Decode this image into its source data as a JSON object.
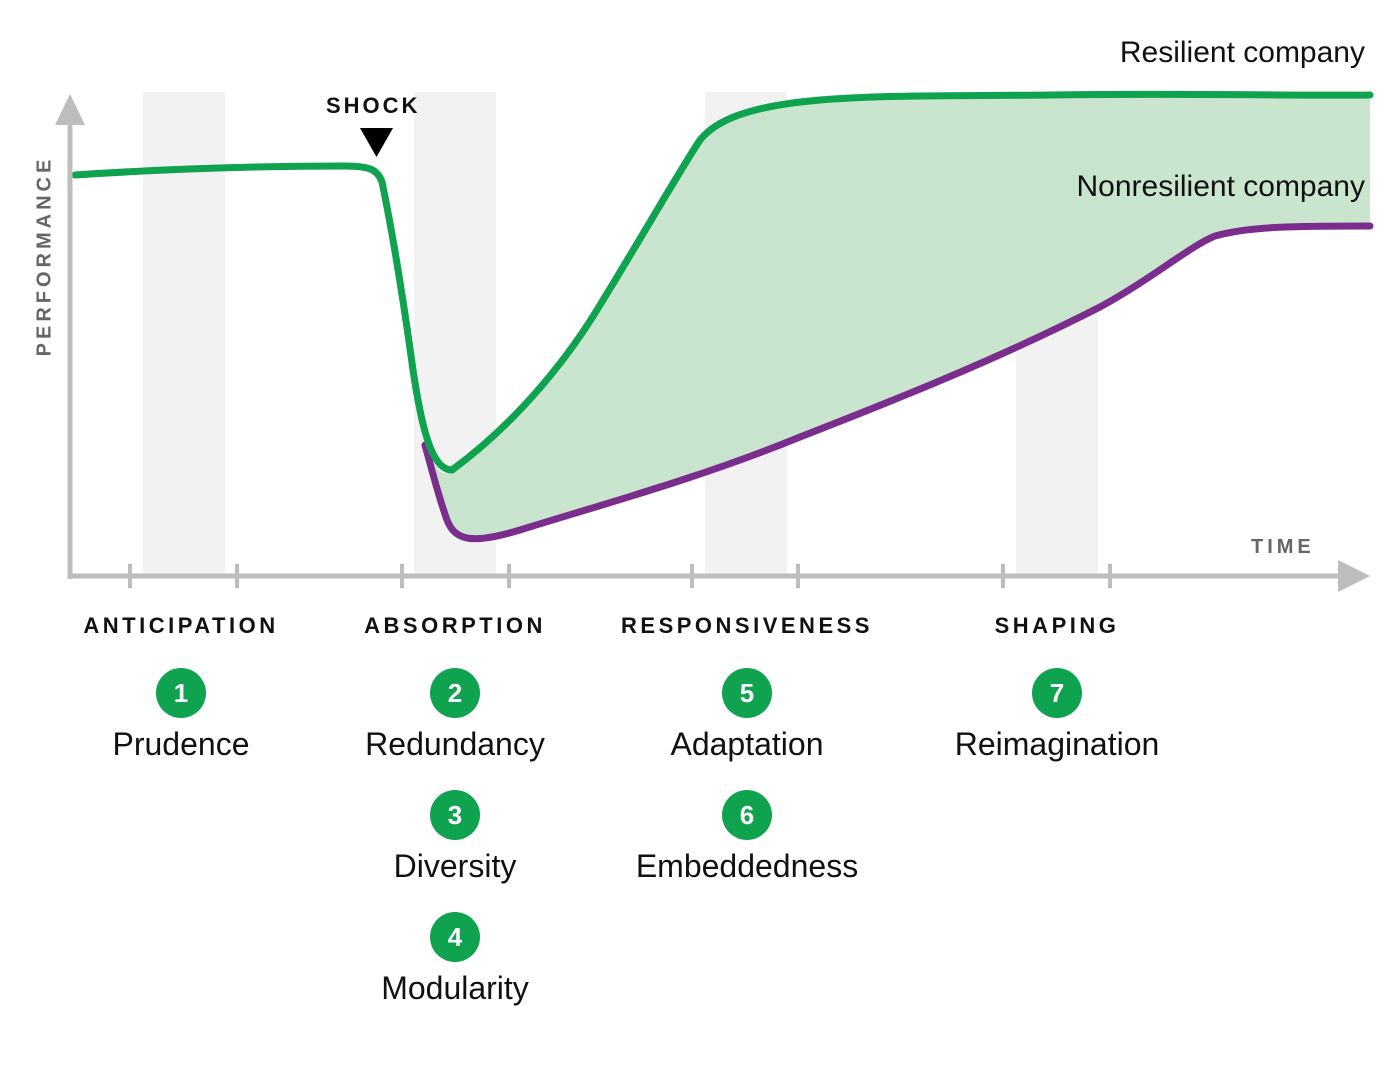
{
  "colors": {
    "resilient": "#0fa24f",
    "nonresilient": "#7b2d8e",
    "gap_fill": "#c6e3c9",
    "band": "#f2f2f2",
    "axis": "#bdbdbd",
    "badge": "#0fa24f"
  },
  "axes": {
    "y_label": "PERFORMANCE",
    "x_label": "TIME"
  },
  "shock": {
    "label": "SHOCK"
  },
  "series": {
    "resilient": {
      "name": "Resilient company"
    },
    "nonresilient": {
      "name": "Nonresilient company"
    }
  },
  "phases": [
    {
      "title": "ANTICIPATION",
      "capabilities": [
        {
          "number": "1",
          "label": "Prudence"
        }
      ]
    },
    {
      "title": "ABSORPTION",
      "capabilities": [
        {
          "number": "2",
          "label": "Redundancy"
        },
        {
          "number": "3",
          "label": "Diversity"
        },
        {
          "number": "4",
          "label": "Modularity"
        }
      ]
    },
    {
      "title": "RESPONSIVENESS",
      "capabilities": [
        {
          "number": "5",
          "label": "Adaptation"
        },
        {
          "number": "6",
          "label": "Embeddedness"
        }
      ]
    },
    {
      "title": "SHAPING",
      "capabilities": [
        {
          "number": "7",
          "label": "Reimagination"
        }
      ]
    }
  ]
}
